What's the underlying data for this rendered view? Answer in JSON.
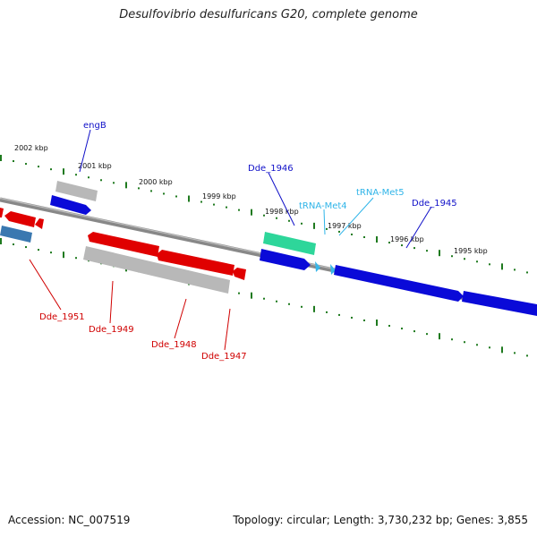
{
  "header": {
    "title": "Desulfovibrio desulfuricans G20, complete genome"
  },
  "footer": {
    "accession": "Accession: NC_007519",
    "summary": "Topology: circular; Length: 3,730,232 bp; Genes: 3,855"
  },
  "colors": {
    "background": "#ffffff",
    "backbone": "#8a8a8a",
    "tick": "#1f7a1f",
    "gene_forward": "#0a0ad8",
    "gene_reverse": "#e00000",
    "pseudo_gray": "#b5b5b5",
    "rna_teal": "#2ed69a",
    "trna": "#38b6e8",
    "steelblue": "#3a78b0",
    "label_blue": "#1010c8",
    "label_red": "#d00000",
    "label_trna": "#2eb4e8"
  },
  "scale": {
    "unit": "kbp",
    "ticks": [
      "2002 kbp",
      "2001 kbp",
      "2000 kbp",
      "1999 kbp",
      "1998 kbp",
      "1997 kbp",
      "1996 kbp",
      "1995 kbp"
    ]
  },
  "genes": [
    {
      "id": "engB",
      "label": "engB",
      "strand": "forward",
      "color_key": "label_blue"
    },
    {
      "id": "Dde_1946",
      "label": "Dde_1946",
      "strand": "forward",
      "color_key": "label_blue"
    },
    {
      "id": "tRNA-Met4",
      "label": "tRNA-Met4",
      "strand": "forward",
      "color_key": "label_trna"
    },
    {
      "id": "tRNA-Met5",
      "label": "tRNA-Met5",
      "strand": "forward",
      "color_key": "label_trna"
    },
    {
      "id": "Dde_1945",
      "label": "Dde_1945",
      "strand": "forward",
      "color_key": "label_blue"
    },
    {
      "id": "Dde_1951",
      "label": "Dde_1951",
      "strand": "reverse",
      "color_key": "label_red"
    },
    {
      "id": "Dde_1949",
      "label": "Dde_1949",
      "strand": "reverse",
      "color_key": "label_red"
    },
    {
      "id": "Dde_1948",
      "label": "Dde_1948",
      "strand": "reverse",
      "color_key": "label_red"
    },
    {
      "id": "Dde_1947",
      "label": "Dde_1947",
      "strand": "reverse",
      "color_key": "label_red"
    }
  ]
}
